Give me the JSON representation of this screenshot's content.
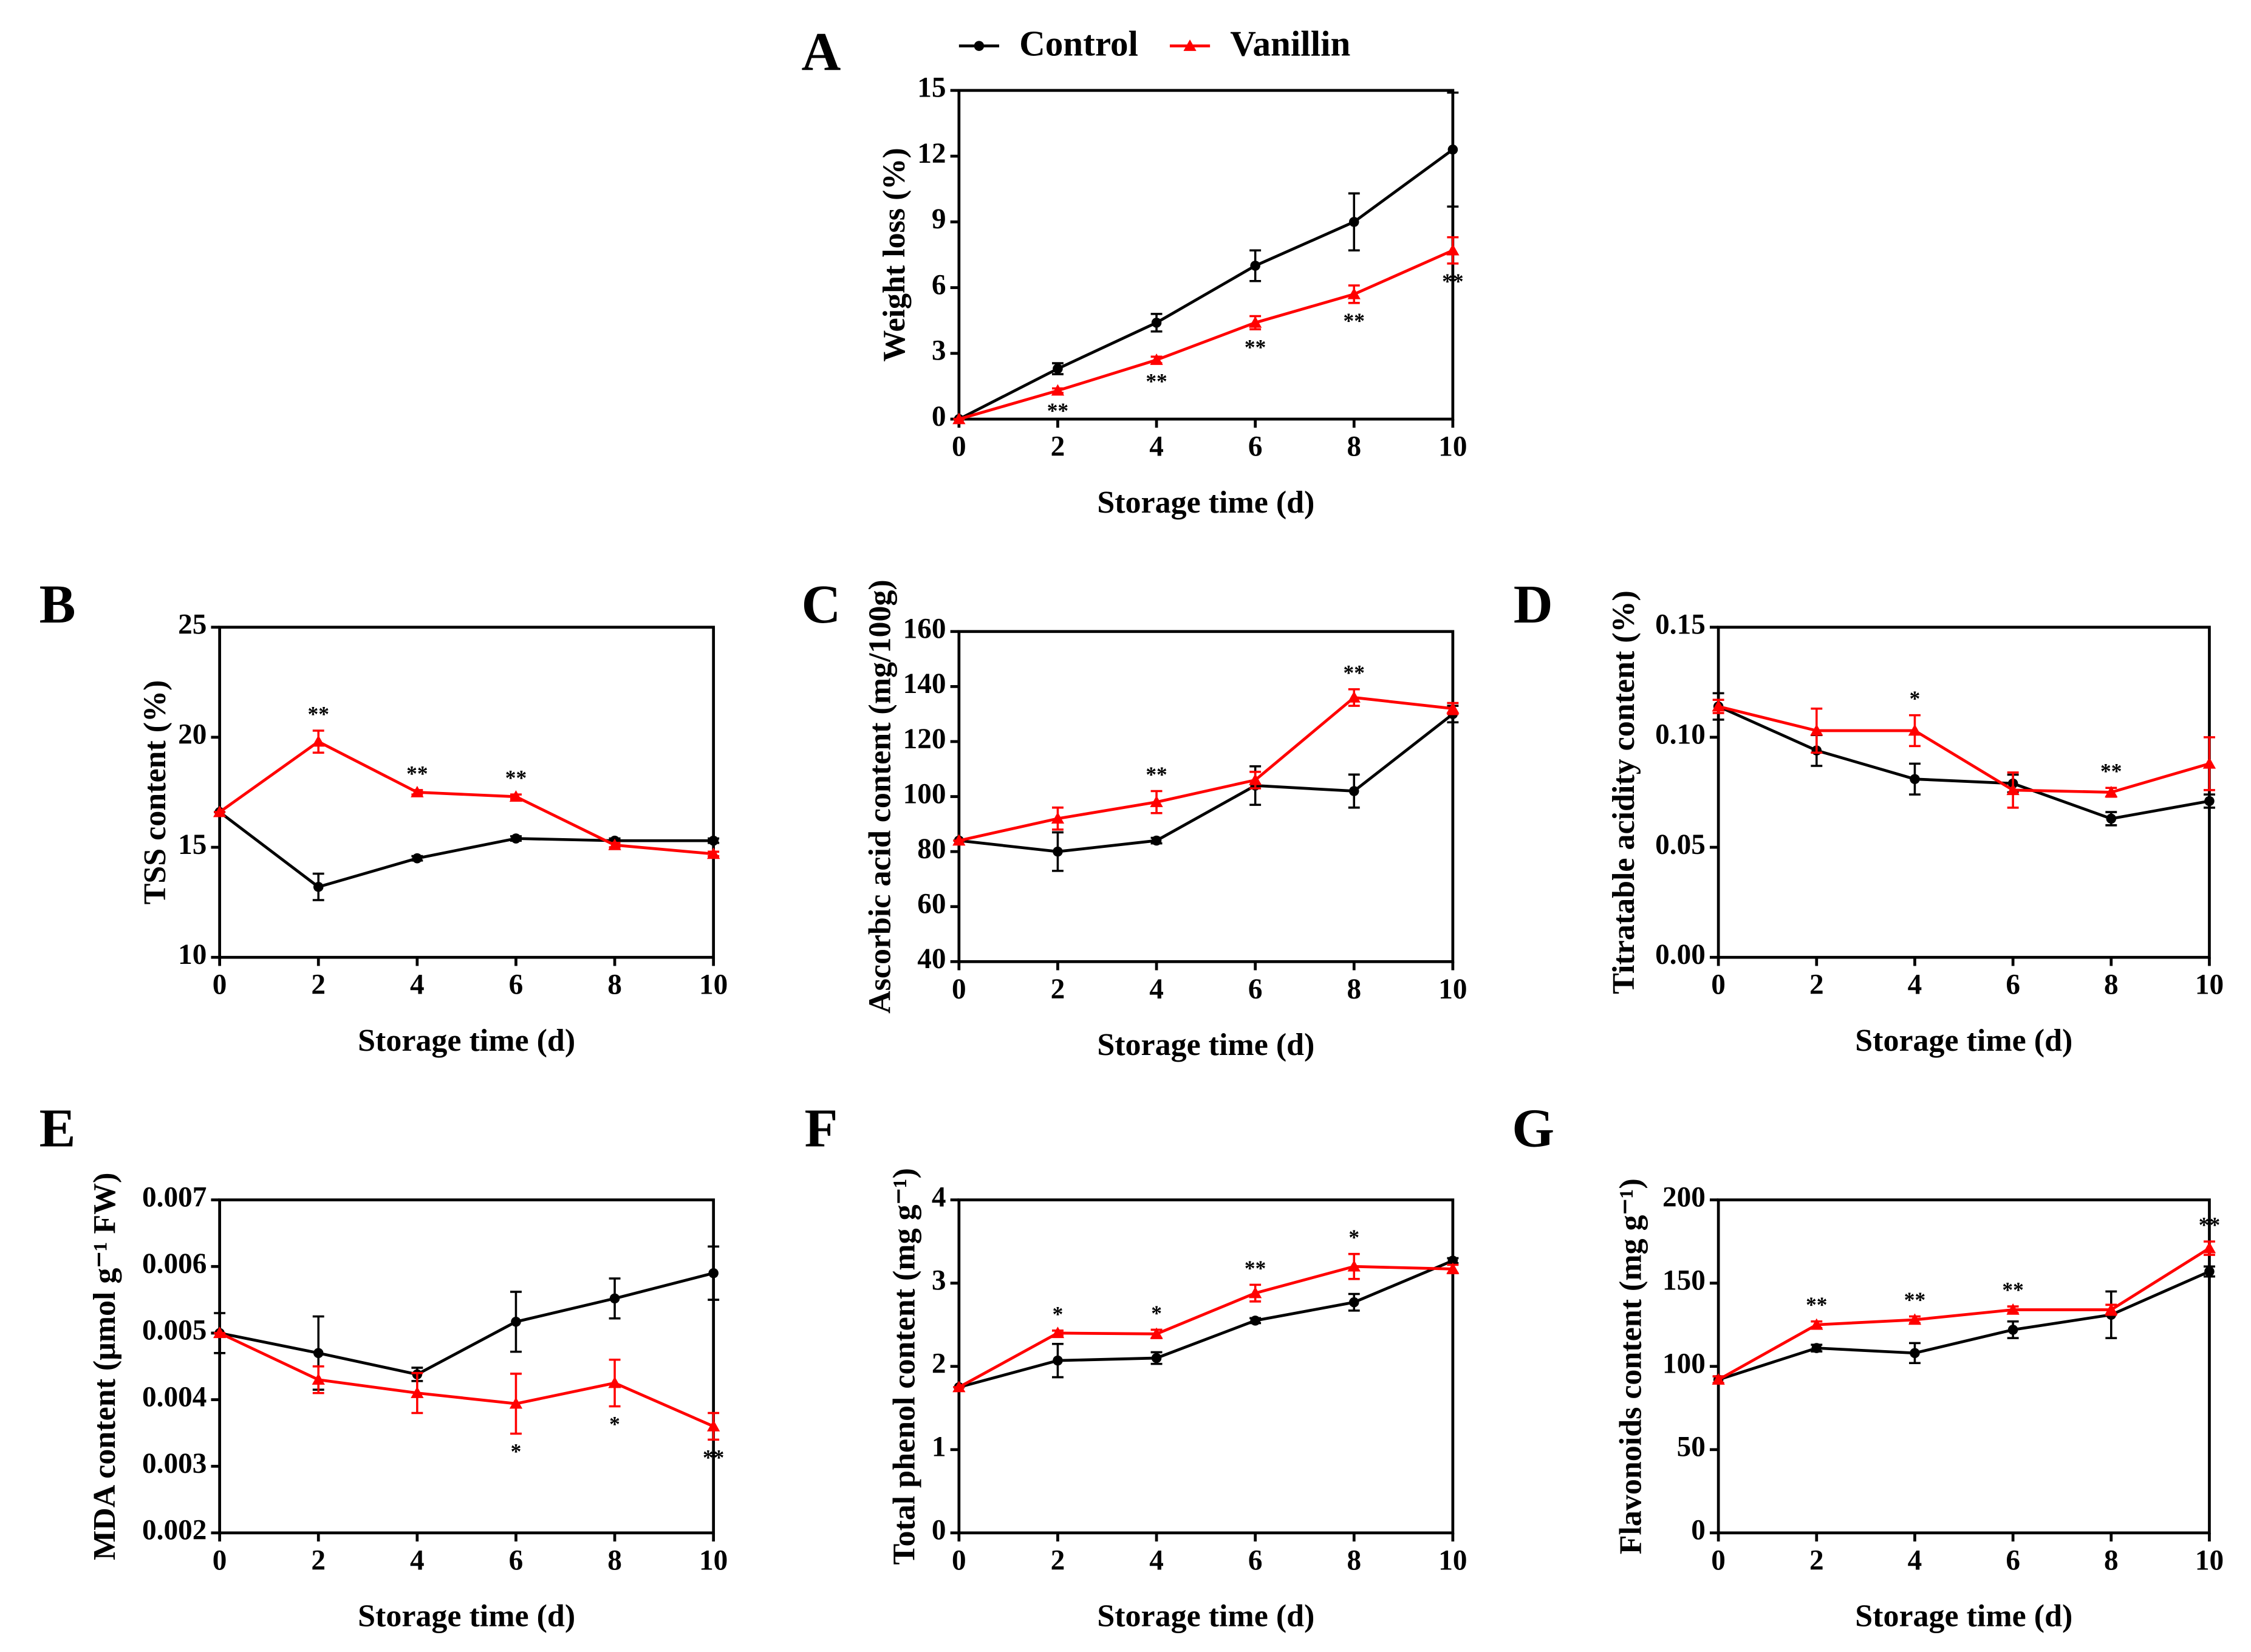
{
  "chart_data": [
    {
      "type": "line",
      "panel_label": "A",
      "ylabel": "Weight loss (%)",
      "xlabel": "Storage time (d)",
      "legend": "top",
      "x": [
        0,
        2,
        4,
        6,
        8,
        10
      ],
      "xlim": [
        0,
        10
      ],
      "xticks": [
        0,
        2,
        4,
        6,
        8,
        10
      ],
      "ylim": [
        0,
        15
      ],
      "yticks": [
        0,
        3,
        6,
        9,
        12,
        15
      ],
      "series": [
        {
          "name": "Control",
          "color": "#000000",
          "values": [
            0,
            2.3,
            4.4,
            7.0,
            9.0,
            12.3
          ],
          "errors": [
            0,
            0.25,
            0.4,
            0.7,
            1.3,
            2.6
          ]
        },
        {
          "name": "Vanillin",
          "color": "#ff0000",
          "values": [
            0,
            1.3,
            2.7,
            4.4,
            5.7,
            7.7
          ],
          "errors": [
            0,
            0.1,
            0.15,
            0.3,
            0.4,
            0.6
          ]
        }
      ],
      "annotation_side": "below",
      "annotations": [
        {
          "x": 2,
          "text": "**"
        },
        {
          "x": 4,
          "text": "**"
        },
        {
          "x": 6,
          "text": "**"
        },
        {
          "x": 8,
          "text": "**"
        },
        {
          "x": 10,
          "text": "**"
        }
      ]
    },
    {
      "type": "line",
      "panel_label": "B",
      "ylabel": "TSS content (%)",
      "xlabel": "Storage time (d)",
      "x": [
        0,
        2,
        4,
        6,
        8,
        10
      ],
      "xlim": [
        0,
        10
      ],
      "xticks": [
        0,
        2,
        4,
        6,
        8,
        10
      ],
      "ylim": [
        10,
        25
      ],
      "yticks": [
        10,
        15,
        20,
        25
      ],
      "series": [
        {
          "color": "#000000",
          "values": [
            16.6,
            13.2,
            14.5,
            15.4,
            15.3,
            15.3
          ],
          "errors": [
            0,
            0.6,
            0.1,
            0.1,
            0.1,
            0.1
          ]
        },
        {
          "color": "#ff0000",
          "values": [
            16.6,
            19.8,
            17.5,
            17.3,
            15.1,
            14.7
          ],
          "errors": [
            0,
            0.5,
            0.1,
            0.1,
            0.1,
            0.1
          ]
        }
      ],
      "annotation_side": "above",
      "annotations": [
        {
          "x": 2,
          "text": "**"
        },
        {
          "x": 4,
          "text": "**"
        },
        {
          "x": 6,
          "text": "**"
        }
      ]
    },
    {
      "type": "line",
      "panel_label": "C",
      "ylabel": "Ascorbic acid content (mg/100g)",
      "xlabel": "Storage time (d)",
      "x": [
        0,
        2,
        4,
        6,
        8,
        10
      ],
      "xlim": [
        0,
        10
      ],
      "xticks": [
        0,
        2,
        4,
        6,
        8,
        10
      ],
      "ylim": [
        40,
        160
      ],
      "yticks": [
        40,
        60,
        80,
        100,
        120,
        140,
        160
      ],
      "series": [
        {
          "color": "#000000",
          "values": [
            84,
            80,
            84,
            104,
            102,
            130
          ],
          "errors": [
            0,
            7,
            1,
            7,
            6,
            3
          ]
        },
        {
          "color": "#ff0000",
          "values": [
            84,
            92,
            98,
            106,
            136,
            132
          ],
          "errors": [
            0,
            4,
            4,
            3,
            3,
            2
          ]
        }
      ],
      "annotation_side": "above",
      "annotations": [
        {
          "x": 4,
          "text": "**"
        },
        {
          "x": 8,
          "text": "**"
        }
      ]
    },
    {
      "type": "line",
      "panel_label": "D",
      "ylabel": "Titratable acidity content (%)",
      "xlabel": "Storage time (d)",
      "x": [
        0,
        2,
        4,
        6,
        8,
        10
      ],
      "xlim": [
        0,
        10
      ],
      "xticks": [
        0,
        2,
        4,
        6,
        8,
        10
      ],
      "ylim": [
        0,
        0.15
      ],
      "yticks": [
        {
          "value": 0,
          "label": "0.00"
        },
        {
          "value": 0.05,
          "label": "0.05"
        },
        {
          "value": 0.1,
          "label": "0.10"
        },
        {
          "value": 0.15,
          "label": "0.15"
        }
      ],
      "series": [
        {
          "color": "#000000",
          "values": [
            0.114,
            0.094,
            0.081,
            0.079,
            0.063,
            0.071
          ],
          "errors": [
            0.006,
            0.007,
            0.007,
            0.004,
            0.003,
            0.003
          ]
        },
        {
          "color": "#ff0000",
          "values": [
            0.114,
            0.103,
            0.103,
            0.076,
            0.075,
            0.088
          ],
          "errors": [
            0.003,
            0.01,
            0.007,
            0.008,
            0.002,
            0.012
          ]
        }
      ],
      "annotation_side": "above",
      "annotations": [
        {
          "x": 4,
          "text": "*"
        },
        {
          "x": 8,
          "text": "**"
        }
      ]
    },
    {
      "type": "line",
      "panel_label": "E",
      "ylabel": "MDA content (μmol g⁻¹ FW)",
      "xlabel": "Storage time (d)",
      "x": [
        0,
        2,
        4,
        6,
        8,
        10
      ],
      "xlim": [
        0,
        10
      ],
      "xticks": [
        0,
        2,
        4,
        6,
        8,
        10
      ],
      "ylim": [
        0.002,
        0.007
      ],
      "yticks": [
        0.002,
        0.003,
        0.004,
        0.005,
        0.006,
        0.007
      ],
      "series": [
        {
          "color": "#000000",
          "values": [
            0.005,
            0.0047,
            0.00438,
            0.00517,
            0.00552,
            0.0059
          ],
          "errors": [
            0.0003,
            0.00055,
            0.0001,
            0.00045,
            0.0003,
            0.0004
          ]
        },
        {
          "color": "#ff0000",
          "values": [
            0.005,
            0.0043,
            0.0041,
            0.00394,
            0.00425,
            0.0036
          ],
          "errors": [
            0,
            0.0002,
            0.0003,
            0.00045,
            0.00035,
            0.0002
          ]
        }
      ],
      "annotation_side": "below",
      "annotations": [
        {
          "x": 6,
          "text": "*"
        },
        {
          "x": 8,
          "text": "*"
        },
        {
          "x": 10,
          "text": "**"
        }
      ]
    },
    {
      "type": "line",
      "panel_label": "F",
      "ylabel": "Total phenol content (mg g⁻¹)",
      "xlabel": "Storage time (d)",
      "x": [
        0,
        2,
        4,
        6,
        8,
        10
      ],
      "xlim": [
        0,
        10
      ],
      "xticks": [
        0,
        2,
        4,
        6,
        8,
        10
      ],
      "ylim": [
        0,
        4
      ],
      "yticks": [
        0,
        1,
        2,
        3,
        4
      ],
      "series": [
        {
          "color": "#000000",
          "values": [
            1.75,
            2.07,
            2.1,
            2.55,
            2.77,
            3.27
          ],
          "errors": [
            0,
            0.2,
            0.07,
            0.03,
            0.1,
            0.03
          ]
        },
        {
          "color": "#ff0000",
          "values": [
            1.75,
            2.4,
            2.39,
            2.88,
            3.2,
            3.17
          ],
          "errors": [
            0,
            0.03,
            0.05,
            0.1,
            0.15,
            0.05
          ]
        }
      ],
      "annotation_side": "above",
      "annotations": [
        {
          "x": 2,
          "text": "*"
        },
        {
          "x": 4,
          "text": "*"
        },
        {
          "x": 6,
          "text": "**"
        },
        {
          "x": 8,
          "text": "*"
        }
      ]
    },
    {
      "type": "line",
      "panel_label": "G",
      "ylabel": "Flavonoids content (mg g⁻¹)",
      "xlabel": "Storage time (d)",
      "x": [
        0,
        2,
        4,
        6,
        8,
        10
      ],
      "xlim": [
        0,
        10
      ],
      "xticks": [
        0,
        2,
        4,
        6,
        8,
        10
      ],
      "ylim": [
        0,
        200
      ],
      "yticks": [
        0,
        50,
        100,
        150,
        200
      ],
      "series": [
        {
          "color": "#000000",
          "values": [
            92,
            111,
            108,
            122,
            131,
            157
          ],
          "errors": [
            2,
            2,
            6,
            5,
            14,
            3
          ]
        },
        {
          "color": "#ff0000",
          "values": [
            92,
            125,
            128,
            134,
            134,
            171
          ],
          "errors": [
            2,
            2,
            2,
            2,
            3,
            4
          ]
        }
      ],
      "annotation_side": "above",
      "annotations": [
        {
          "x": 2,
          "text": "**"
        },
        {
          "x": 4,
          "text": "**"
        },
        {
          "x": 6,
          "text": "**"
        },
        {
          "x": 10,
          "text": "**"
        }
      ]
    }
  ]
}
